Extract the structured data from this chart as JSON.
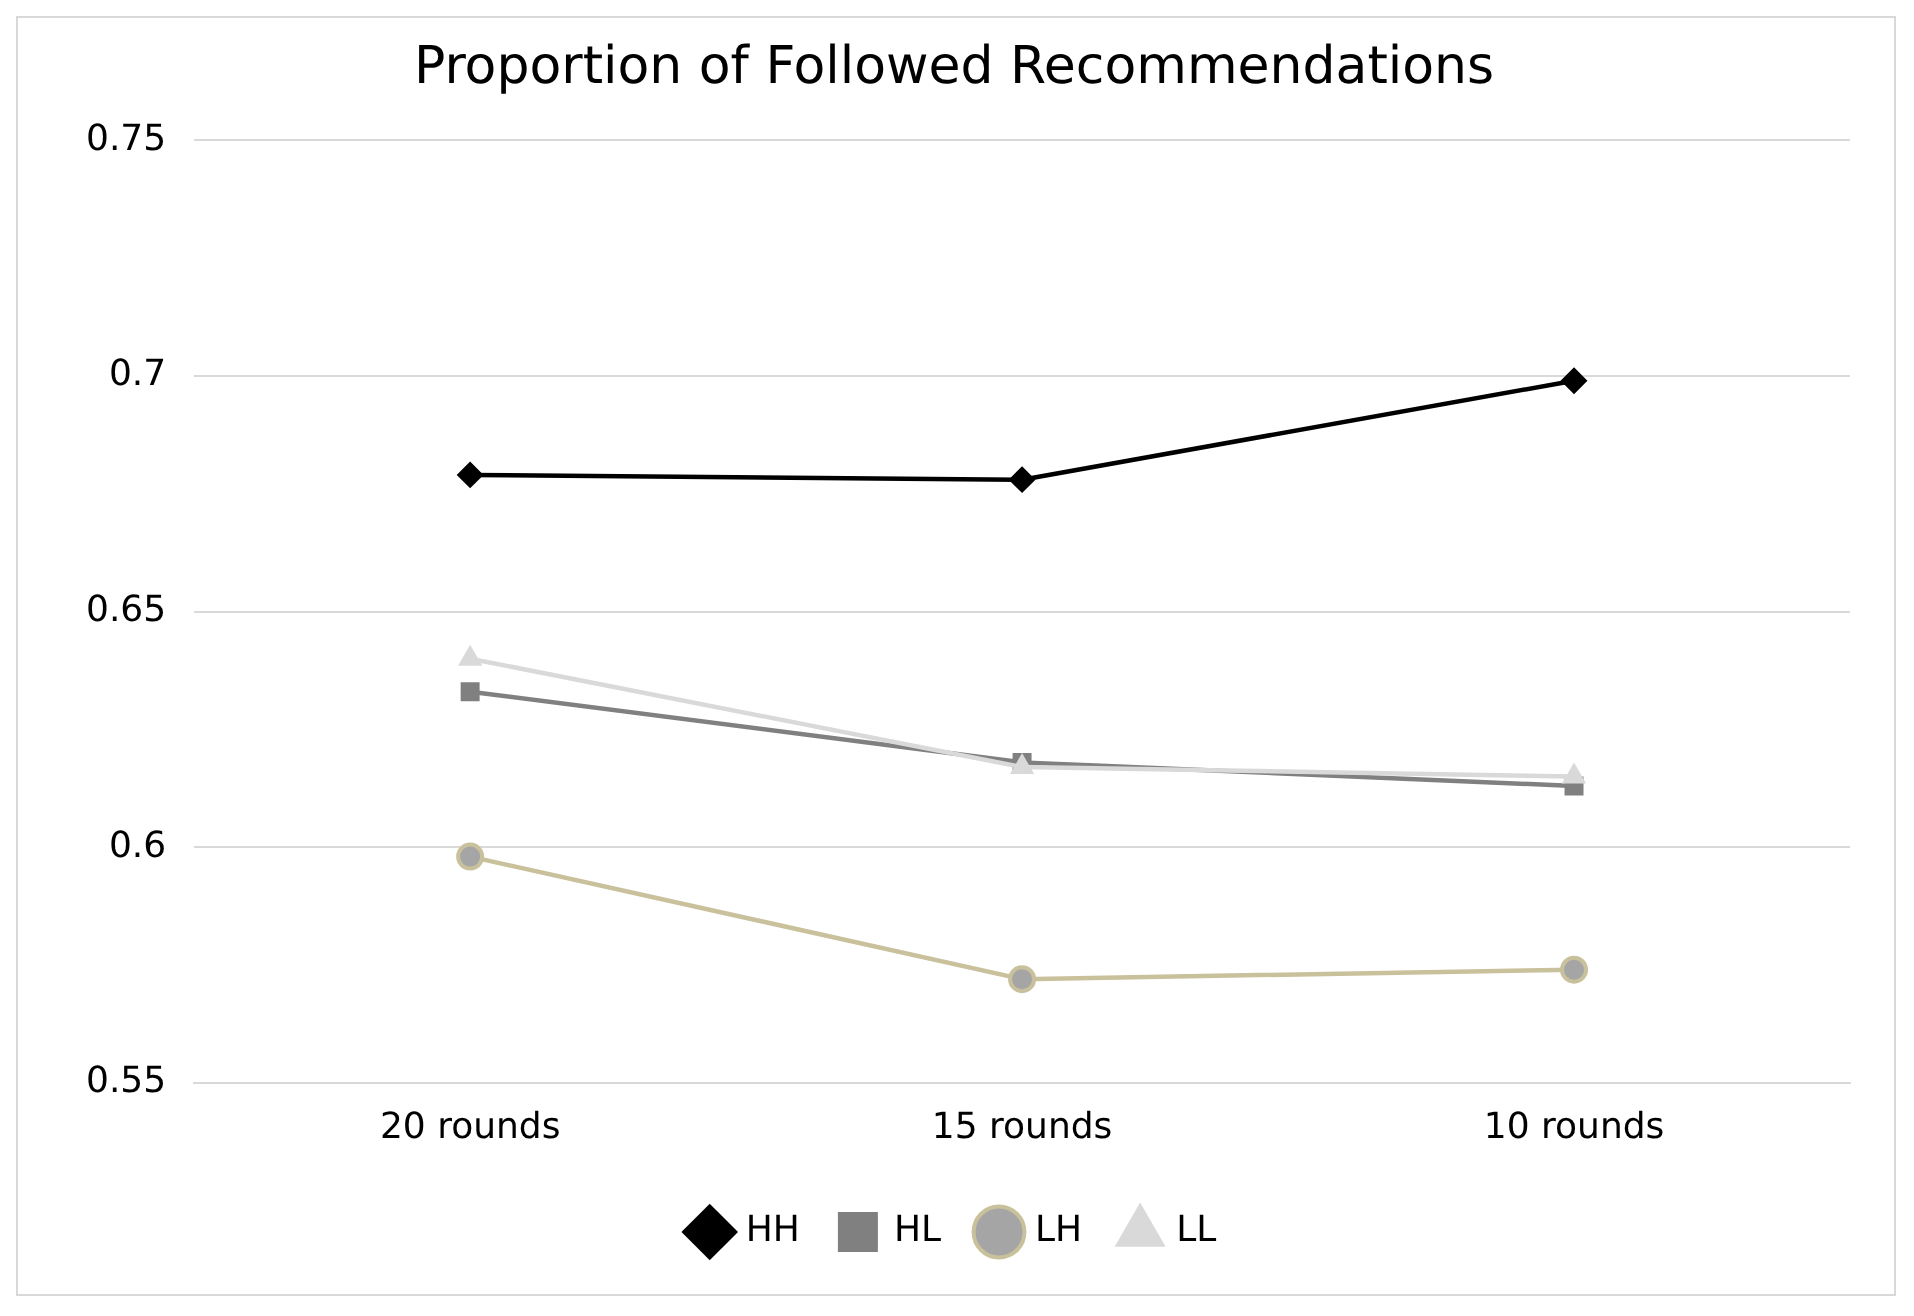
{
  "chart_data": {
    "type": "line",
    "title": "Proportion of Followed Recommendations",
    "categories": [
      "20 rounds",
      "15 rounds",
      "10 rounds"
    ],
    "series": [
      {
        "name": "HH",
        "color": "#000000",
        "marker": "diamond",
        "values": [
          0.679,
          0.678,
          0.699
        ]
      },
      {
        "name": "HL",
        "color": "#808080",
        "marker": "square",
        "values": [
          0.633,
          0.618,
          0.613
        ]
      },
      {
        "name": "LH",
        "color": "#c9c09c",
        "marker": "circle",
        "values": [
          0.598,
          0.572,
          0.574
        ]
      },
      {
        "name": "LL",
        "color": "#d9d9d9",
        "marker": "triangle",
        "values": [
          0.64,
          0.617,
          0.615
        ]
      }
    ],
    "ylim": [
      0.55,
      0.75
    ],
    "yticks": [
      0.55,
      0.6,
      0.65,
      0.7,
      0.75
    ],
    "grid": "y",
    "legend": "bottom",
    "line_style": "solid"
  }
}
